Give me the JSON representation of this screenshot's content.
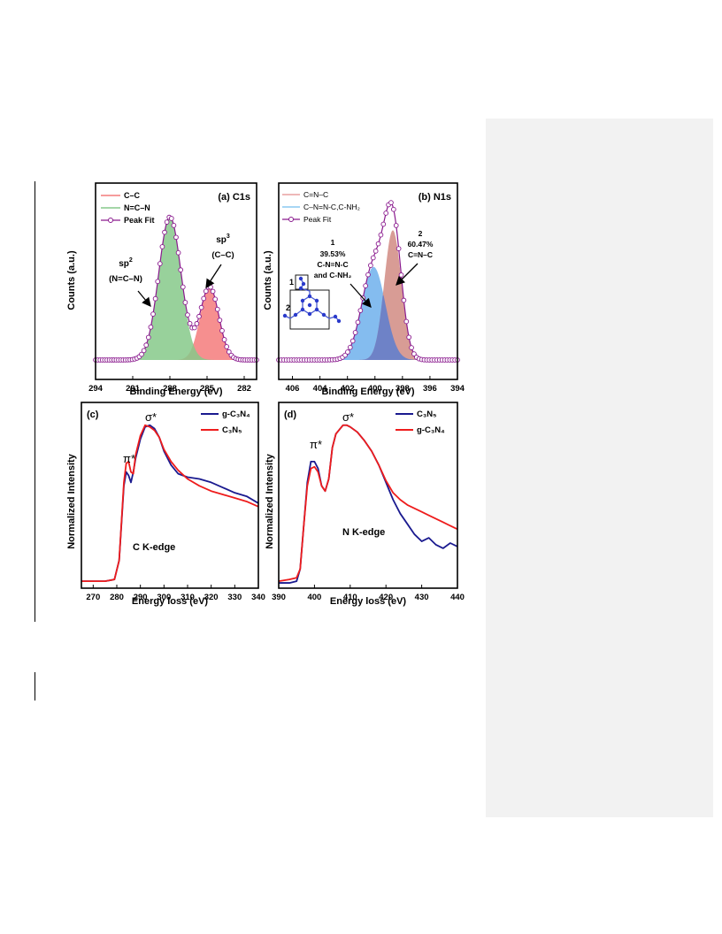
{
  "colors": {
    "cc_fill": "#f47b7b",
    "ncn_fill": "#86c98a",
    "fit": "#8a1a8e",
    "n_ccn_fill": "#d18b82",
    "n_cnnc_fill": "#6fb0ec",
    "n_overlap": "#5e7fd0",
    "n_legend_red": "#e8a0a0",
    "n_legend_blue": "#8ac8f0",
    "blue_line": "#1a1a8f",
    "red_line": "#ee1c1c"
  },
  "icons": {
    "molecule": "triazine-structure-icon",
    "arrow": "annotation-arrow-icon"
  },
  "chart_data": [
    {
      "id": "a",
      "type": "area",
      "panel_label": "(a) C1s",
      "xlabel": "Binding Energy (eV)",
      "ylabel": "Counts (a.u.)",
      "xlim": [
        294,
        281
      ],
      "x_reversed": true,
      "xticks": [
        "294",
        "291",
        "288",
        "285",
        "282"
      ],
      "legend": [
        "C–C",
        "N=C–N",
        "Peak Fit"
      ],
      "annotations": [
        {
          "main": "sp",
          "sup": "2",
          "sub": "(N=C–N)"
        },
        {
          "main": "sp",
          "sup": "3",
          "sub": "(C–C)"
        }
      ],
      "series": [
        {
          "name": "C–C",
          "kind": "gaussian",
          "center": 284.8,
          "height": 0.44,
          "sigma": 0.75
        },
        {
          "name": "N=C–N",
          "kind": "gaussian",
          "center": 288.0,
          "height": 0.86,
          "sigma": 0.9
        },
        {
          "name": "Peak Fit",
          "kind": "sum"
        }
      ]
    },
    {
      "id": "b",
      "type": "area",
      "panel_label": "(b) N1s",
      "xlabel": "Binding Energy (eV)",
      "ylabel": "Counts (a.u.)",
      "xlim": [
        407,
        394
      ],
      "x_reversed": true,
      "xticks": [
        "406",
        "404",
        "402",
        "400",
        "398",
        "396",
        "394"
      ],
      "legend": [
        "C=N–C",
        "C–N=N-C,C-NH₂",
        "Peak Fit"
      ],
      "annotations": [
        {
          "lines": [
            "1",
            "39.53%",
            "C-N=N-C",
            "and C-NH₂"
          ]
        },
        {
          "lines": [
            "2",
            "60.47%",
            "C=N–C"
          ]
        }
      ],
      "inset_labels": [
        "1",
        "2"
      ],
      "series": [
        {
          "name": "C–N=N-C,C-NH₂",
          "kind": "gaussian",
          "center": 400.1,
          "height": 0.56,
          "sigma": 0.85
        },
        {
          "name": "C=N–C",
          "kind": "gaussian",
          "center": 398.7,
          "height": 0.78,
          "sigma": 0.62
        },
        {
          "name": "Peak Fit",
          "kind": "sum"
        }
      ]
    },
    {
      "id": "c",
      "type": "line",
      "panel_label": "(c)",
      "edge_label": "C K-edge",
      "xlabel": "Energy loss (eV)",
      "ylabel": "Normalized Intensity",
      "xlim": [
        265,
        340
      ],
      "xticks": [
        "270",
        "280",
        "290",
        "300",
        "310",
        "320",
        "330",
        "340"
      ],
      "peak_labels": [
        "π*",
        "σ*"
      ],
      "series": [
        {
          "name": "g-C₃N₄",
          "x": [
            265,
            270,
            275,
            279,
            281,
            283,
            284,
            285,
            286,
            287,
            288,
            290,
            292,
            294,
            296,
            298,
            300,
            303,
            306,
            310,
            315,
            320,
            325,
            330,
            335,
            340
          ],
          "y": [
            0.03,
            0.03,
            0.03,
            0.04,
            0.15,
            0.58,
            0.66,
            0.64,
            0.6,
            0.66,
            0.74,
            0.85,
            0.92,
            0.93,
            0.91,
            0.86,
            0.78,
            0.7,
            0.65,
            0.63,
            0.62,
            0.6,
            0.57,
            0.54,
            0.52,
            0.48
          ]
        },
        {
          "name": "C₃N₅",
          "x": [
            265,
            270,
            275,
            279,
            281,
            283,
            284,
            285,
            286,
            287,
            288,
            290,
            292,
            294,
            296,
            298,
            300,
            303,
            306,
            310,
            315,
            320,
            325,
            330,
            335,
            340
          ],
          "y": [
            0.03,
            0.03,
            0.03,
            0.04,
            0.15,
            0.6,
            0.71,
            0.72,
            0.66,
            0.65,
            0.76,
            0.87,
            0.93,
            0.92,
            0.9,
            0.86,
            0.79,
            0.72,
            0.67,
            0.62,
            0.58,
            0.55,
            0.53,
            0.51,
            0.49,
            0.46
          ]
        }
      ]
    },
    {
      "id": "d",
      "type": "line",
      "panel_label": "(d)",
      "edge_label": "N K-edge",
      "xlabel": "Energy loss (eV)",
      "ylabel": "Normalized Intensity",
      "xlim": [
        390,
        440
      ],
      "xticks": [
        "390",
        "400",
        "410",
        "420",
        "430",
        "440"
      ],
      "peak_labels": [
        "π*",
        "σ*"
      ],
      "series": [
        {
          "name": "C₃N₅",
          "x": [
            390,
            393,
            395,
            396,
            397,
            398,
            399,
            400,
            401,
            402,
            403,
            404,
            405,
            406,
            408,
            409,
            410,
            412,
            414,
            416,
            418,
            420,
            422,
            424,
            426,
            428,
            430,
            432,
            434,
            436,
            438,
            440
          ],
          "y": [
            0.02,
            0.02,
            0.03,
            0.1,
            0.35,
            0.6,
            0.72,
            0.72,
            0.68,
            0.58,
            0.55,
            0.62,
            0.8,
            0.88,
            0.93,
            0.93,
            0.92,
            0.89,
            0.84,
            0.78,
            0.7,
            0.6,
            0.5,
            0.42,
            0.36,
            0.3,
            0.26,
            0.28,
            0.24,
            0.22,
            0.25,
            0.23
          ]
        },
        {
          "name": "g-C₃N₄",
          "x": [
            390,
            393,
            395,
            396,
            397,
            398,
            399,
            400,
            401,
            402,
            403,
            404,
            405,
            406,
            408,
            409,
            410,
            412,
            414,
            416,
            418,
            420,
            422,
            424,
            426,
            428,
            430,
            432,
            434,
            436,
            438,
            440
          ],
          "y": [
            0.03,
            0.04,
            0.05,
            0.1,
            0.35,
            0.58,
            0.68,
            0.69,
            0.66,
            0.58,
            0.55,
            0.62,
            0.8,
            0.88,
            0.93,
            0.93,
            0.92,
            0.89,
            0.84,
            0.78,
            0.7,
            0.61,
            0.54,
            0.5,
            0.47,
            0.45,
            0.43,
            0.41,
            0.39,
            0.37,
            0.35,
            0.33
          ]
        }
      ]
    }
  ]
}
